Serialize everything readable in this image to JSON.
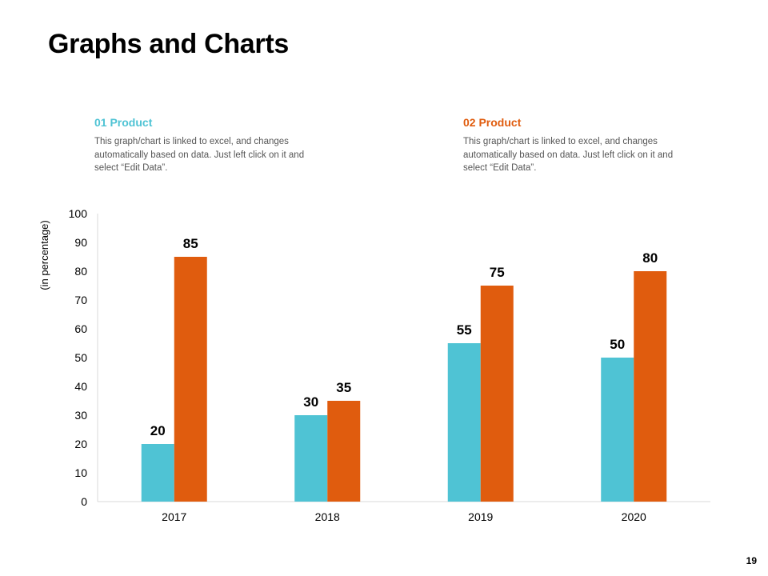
{
  "page": {
    "title": "Graphs and Charts",
    "number": "19"
  },
  "legend": [
    {
      "heading": "01 Product",
      "description": "This graph/chart is linked to excel, and changes automatically based on data. Just left click on it and select “Edit Data”."
    },
    {
      "heading": "02 Product",
      "description": "This graph/chart is linked to excel, and changes automatically based on data. Just left click on it and select “Edit Data”."
    }
  ],
  "colors": {
    "product1": "#4FC3D4",
    "product2": "#E05C0E"
  },
  "chart_data": {
    "type": "bar",
    "title": "",
    "xlabel": "",
    "ylabel": "(in percentage)",
    "ylim": [
      0,
      100
    ],
    "yticks": [
      0,
      10,
      20,
      30,
      40,
      50,
      60,
      70,
      80,
      90,
      100
    ],
    "categories": [
      "2017",
      "2018",
      "2019",
      "2020"
    ],
    "series": [
      {
        "name": "01 Product",
        "values": [
          20,
          30,
          55,
          50
        ]
      },
      {
        "name": "02 Product",
        "values": [
          85,
          35,
          75,
          80
        ]
      }
    ],
    "grid": false,
    "legend_position": "top"
  }
}
